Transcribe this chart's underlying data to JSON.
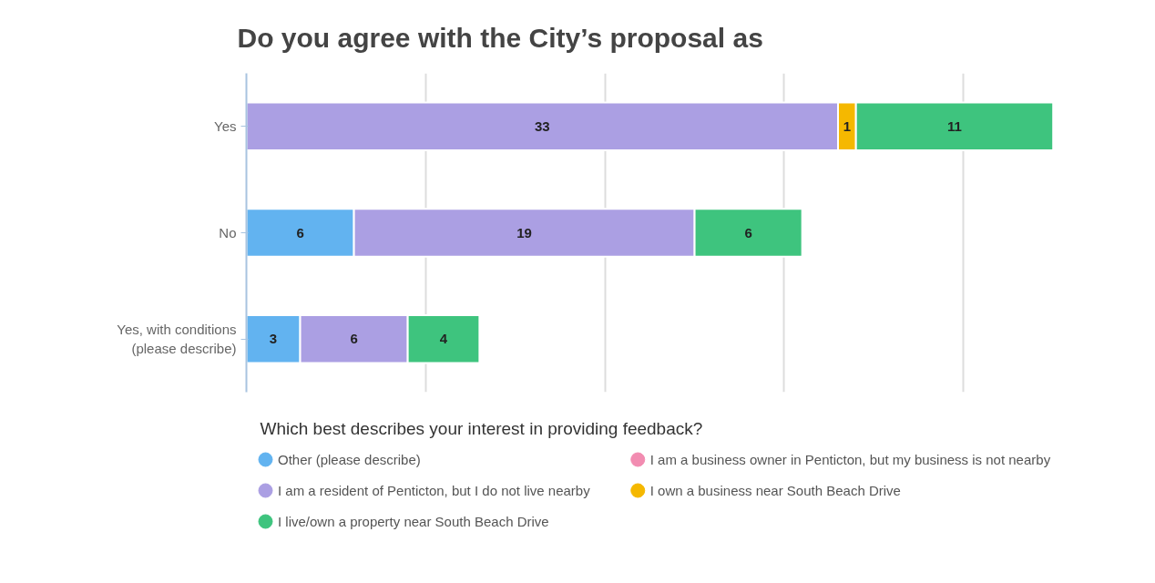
{
  "chart_data": {
    "type": "bar",
    "orientation": "horizontal",
    "stacked": true,
    "title": "Do you agree with the City’s proposal as",
    "categories": [
      "Yes",
      "No",
      "Yes, with conditions\n(please describe)"
    ],
    "series": [
      {
        "name": "Other (please describe)",
        "color": "#62b3f0",
        "values": [
          null,
          6,
          3
        ]
      },
      {
        "name": "I am a business owner in Penticton, but my business is not nearby",
        "color": "#f28cb1",
        "values": [
          null,
          null,
          null
        ]
      },
      {
        "name": "I am a resident of Penticton, but I do not live nearby",
        "color": "#ab9fe3",
        "values": [
          33,
          19,
          6
        ]
      },
      {
        "name": "I own a business near South Beach Drive",
        "color": "#f5b800",
        "values": [
          1,
          null,
          null
        ]
      },
      {
        "name": "I live/own a property near South Beach Drive",
        "color": "#3ec47e",
        "values": [
          11,
          6,
          4
        ]
      }
    ],
    "tick_labels": "y",
    "grid": "x",
    "data_labels": true,
    "legend": "bottom",
    "legend_title": "Which best describes your interest in providing feedback?"
  }
}
